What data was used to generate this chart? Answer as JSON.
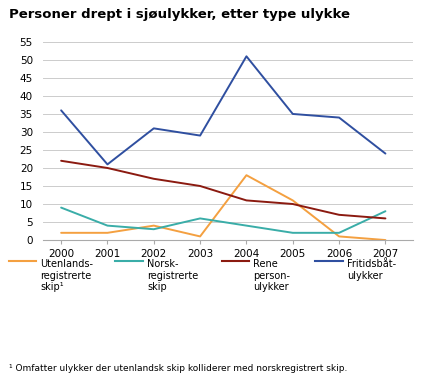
{
  "title": "Personer drept i sjøulykker, etter type ulykke",
  "footnote": "¹ Omfatter ulykker der utenlandsk skip kolliderer med norskregistrert skip.",
  "years": [
    2000,
    2001,
    2002,
    2003,
    2004,
    2005,
    2006,
    2007
  ],
  "series": [
    {
      "label": "Utenlands-\nregistrerte\nskip¹",
      "color": "#f4a040",
      "data": [
        2,
        2,
        4,
        1,
        18,
        11,
        1,
        0
      ]
    },
    {
      "label": "Norsk-\nregistrerte\nskip",
      "color": "#3aada8",
      "data": [
        9,
        4,
        3,
        6,
        4,
        2,
        2,
        8
      ]
    },
    {
      "label": "Rene\nperson-\nulykker",
      "color": "#8b1a10",
      "data": [
        22,
        20,
        17,
        15,
        11,
        10,
        7,
        6
      ]
    },
    {
      "label": "Fritidsbåt-\nulykker",
      "color": "#2f4fa0",
      "data": [
        36,
        21,
        31,
        29,
        51,
        35,
        34,
        24
      ]
    }
  ],
  "ylim": [
    0,
    55
  ],
  "yticks": [
    0,
    5,
    10,
    15,
    20,
    25,
    30,
    35,
    40,
    45,
    50,
    55
  ],
  "background_color": "#ffffff",
  "grid_color": "#cccccc",
  "title_fontsize": 9.5,
  "tick_fontsize": 7.5,
  "footnote_fontsize": 6.5,
  "legend_fontsize": 7.0
}
